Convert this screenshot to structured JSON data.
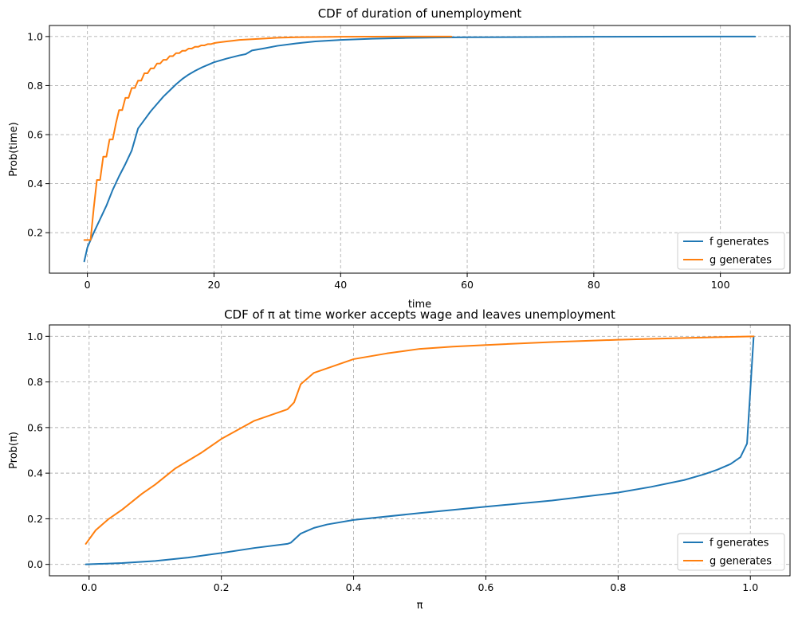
{
  "chart_data": [
    {
      "type": "line",
      "title": "CDF of duration of unemployment",
      "xlabel": "time",
      "ylabel": "Prob(time)",
      "xlim": [
        -6,
        111
      ],
      "ylim": [
        0.035,
        1.045
      ],
      "xticks": [
        0,
        20,
        40,
        60,
        80,
        100
      ],
      "xtick_labels": [
        "0",
        "20",
        "40",
        "60",
        "80",
        "100"
      ],
      "yticks": [
        0.2,
        0.4,
        0.6,
        0.8,
        1.0
      ],
      "ytick_labels": [
        "0.2",
        "0.4",
        "0.6",
        "0.8",
        "1.0"
      ],
      "grid": true,
      "legend": "lower right",
      "series": [
        {
          "name": "f generates",
          "color": "#1f77b4",
          "x": [
            -0.5,
            0,
            1,
            2,
            3,
            4,
            5,
            6,
            7,
            8,
            9,
            10,
            11,
            12,
            13,
            14,
            15,
            16,
            17,
            18,
            19,
            20,
            22,
            24,
            25,
            26,
            28,
            30,
            33,
            36,
            40,
            45,
            50,
            55,
            60,
            70,
            80,
            90,
            100,
            105.5
          ],
          "y": [
            0.083,
            0.14,
            0.2,
            0.255,
            0.31,
            0.375,
            0.43,
            0.48,
            0.535,
            0.625,
            0.66,
            0.695,
            0.725,
            0.755,
            0.78,
            0.805,
            0.827,
            0.845,
            0.86,
            0.873,
            0.884,
            0.895,
            0.91,
            0.923,
            0.928,
            0.943,
            0.952,
            0.962,
            0.972,
            0.98,
            0.986,
            0.991,
            0.994,
            0.996,
            0.997,
            0.998,
            0.999,
            0.9995,
            0.9998,
            1.0
          ]
        },
        {
          "name": "g generates",
          "color": "#ff7f0e",
          "x": [
            -0.5,
            0.5,
            1,
            1.5,
            2,
            2.5,
            3,
            3.5,
            4,
            4.5,
            5,
            5.5,
            6,
            6.5,
            7,
            7.5,
            8,
            8.5,
            9,
            9.5,
            10,
            10.5,
            11,
            11.5,
            12,
            12.5,
            13,
            13.5,
            14,
            14.5,
            15,
            15.5,
            16,
            16.5,
            17,
            17.5,
            18,
            18.5,
            19,
            19.5,
            20,
            20.5,
            22,
            23,
            24,
            26,
            28,
            30,
            33,
            36,
            40,
            45,
            50,
            57.5
          ],
          "y": [
            0.17,
            0.17,
            0.3,
            0.415,
            0.415,
            0.51,
            0.51,
            0.58,
            0.58,
            0.645,
            0.7,
            0.7,
            0.75,
            0.75,
            0.79,
            0.79,
            0.82,
            0.82,
            0.85,
            0.85,
            0.87,
            0.87,
            0.89,
            0.89,
            0.905,
            0.905,
            0.92,
            0.92,
            0.932,
            0.932,
            0.942,
            0.942,
            0.951,
            0.951,
            0.958,
            0.958,
            0.964,
            0.964,
            0.969,
            0.969,
            0.973,
            0.975,
            0.98,
            0.983,
            0.986,
            0.989,
            0.992,
            0.995,
            0.997,
            0.998,
            0.999,
            0.9995,
            0.9998,
            1.0
          ]
        }
      ]
    },
    {
      "type": "line",
      "title": "CDF of π at time worker accepts wage and leaves unemployment",
      "xlabel": "π",
      "ylabel": "Prob(π)",
      "xlim": [
        -0.06,
        1.06
      ],
      "ylim": [
        -0.05,
        1.05
      ],
      "xticks": [
        0.0,
        0.2,
        0.4,
        0.6,
        0.8,
        1.0
      ],
      "xtick_labels": [
        "0.0",
        "0.2",
        "0.4",
        "0.6",
        "0.8",
        "1.0"
      ],
      "yticks": [
        0.0,
        0.2,
        0.4,
        0.6,
        0.8,
        1.0
      ],
      "ytick_labels": [
        "0.0",
        "0.2",
        "0.4",
        "0.6",
        "0.8",
        "1.0"
      ],
      "grid": true,
      "legend": "lower right",
      "series": [
        {
          "name": "f generates",
          "color": "#1f77b4",
          "x": [
            -0.005,
            0.05,
            0.1,
            0.15,
            0.18,
            0.2,
            0.25,
            0.3,
            0.305,
            0.32,
            0.34,
            0.36,
            0.4,
            0.5,
            0.6,
            0.7,
            0.8,
            0.85,
            0.9,
            0.93,
            0.95,
            0.97,
            0.985,
            0.995,
            1.005
          ],
          "y": [
            0.0,
            0.006,
            0.015,
            0.03,
            0.042,
            0.05,
            0.072,
            0.09,
            0.095,
            0.135,
            0.16,
            0.175,
            0.195,
            0.225,
            0.253,
            0.28,
            0.315,
            0.34,
            0.37,
            0.395,
            0.415,
            0.44,
            0.47,
            0.53,
            1.0
          ]
        },
        {
          "name": "g generates",
          "color": "#ff7f0e",
          "x": [
            -0.005,
            0.01,
            0.03,
            0.05,
            0.08,
            0.1,
            0.13,
            0.17,
            0.2,
            0.25,
            0.3,
            0.31,
            0.32,
            0.34,
            0.36,
            0.4,
            0.45,
            0.5,
            0.55,
            0.6,
            0.7,
            0.8,
            0.9,
            1.005
          ],
          "y": [
            0.09,
            0.15,
            0.2,
            0.24,
            0.31,
            0.35,
            0.42,
            0.49,
            0.55,
            0.63,
            0.68,
            0.71,
            0.79,
            0.84,
            0.86,
            0.9,
            0.925,
            0.945,
            0.955,
            0.962,
            0.975,
            0.985,
            0.993,
            1.0
          ]
        }
      ]
    }
  ]
}
